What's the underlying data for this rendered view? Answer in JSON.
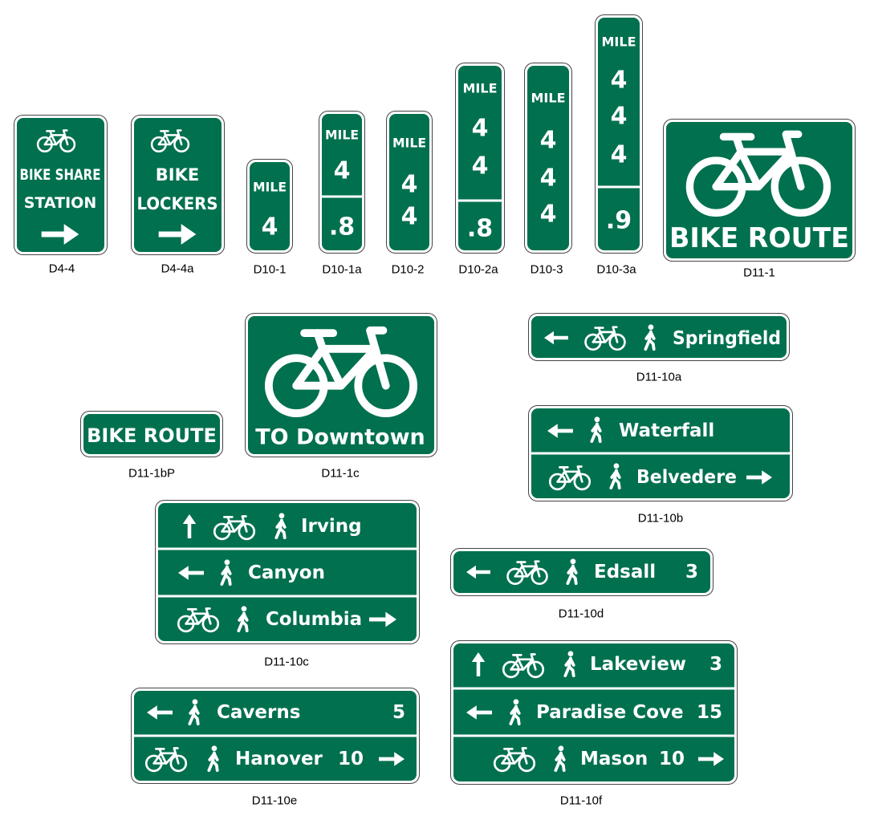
{
  "signs": [
    {
      "code": "D4-4",
      "text": [
        "BIKE SHARE",
        "STATION"
      ]
    },
    {
      "code": "D4-4a",
      "text": [
        "BIKE",
        "LOCKERS"
      ]
    },
    {
      "code": "D10-1",
      "text": [
        "MILE",
        "4"
      ]
    },
    {
      "code": "D10-1a",
      "text": [
        "MILE",
        "4",
        ".8"
      ]
    },
    {
      "code": "D10-2",
      "text": [
        "MILE",
        "4",
        "4"
      ]
    },
    {
      "code": "D10-2a",
      "text": [
        "MILE",
        "4",
        "4",
        ".8"
      ]
    },
    {
      "code": "D10-3",
      "text": [
        "MILE",
        "4",
        "4",
        "4"
      ]
    },
    {
      "code": "D10-3a",
      "text": [
        "MILE",
        "4",
        "4",
        "4",
        ".9"
      ]
    },
    {
      "code": "D11-1",
      "text": [
        "BIKE ROUTE"
      ]
    },
    {
      "code": "D11-1bP",
      "text": [
        "BIKE ROUTE"
      ]
    },
    {
      "code": "D11-1c",
      "text": [
        "TO Downtown"
      ]
    },
    {
      "code": "D11-10a",
      "rows": [
        [
          "Springfield"
        ]
      ]
    },
    {
      "code": "D11-10b",
      "rows": [
        [
          "Waterfall"
        ],
        [
          "Belvedere"
        ]
      ]
    },
    {
      "code": "D11-10c",
      "rows": [
        [
          "Irving"
        ],
        [
          "Canyon"
        ],
        [
          "Columbia"
        ]
      ]
    },
    {
      "code": "D11-10d",
      "rows": [
        [
          "Edsall",
          "3"
        ]
      ]
    },
    {
      "code": "D11-10e",
      "rows": [
        [
          "Caverns",
          "5"
        ],
        [
          "Hanover",
          "10"
        ]
      ]
    },
    {
      "code": "D11-10f",
      "rows": [
        [
          "Lakeview",
          "3"
        ],
        [
          "Paradise Cove",
          "15"
        ],
        [
          "Mason",
          "10"
        ]
      ]
    }
  ]
}
